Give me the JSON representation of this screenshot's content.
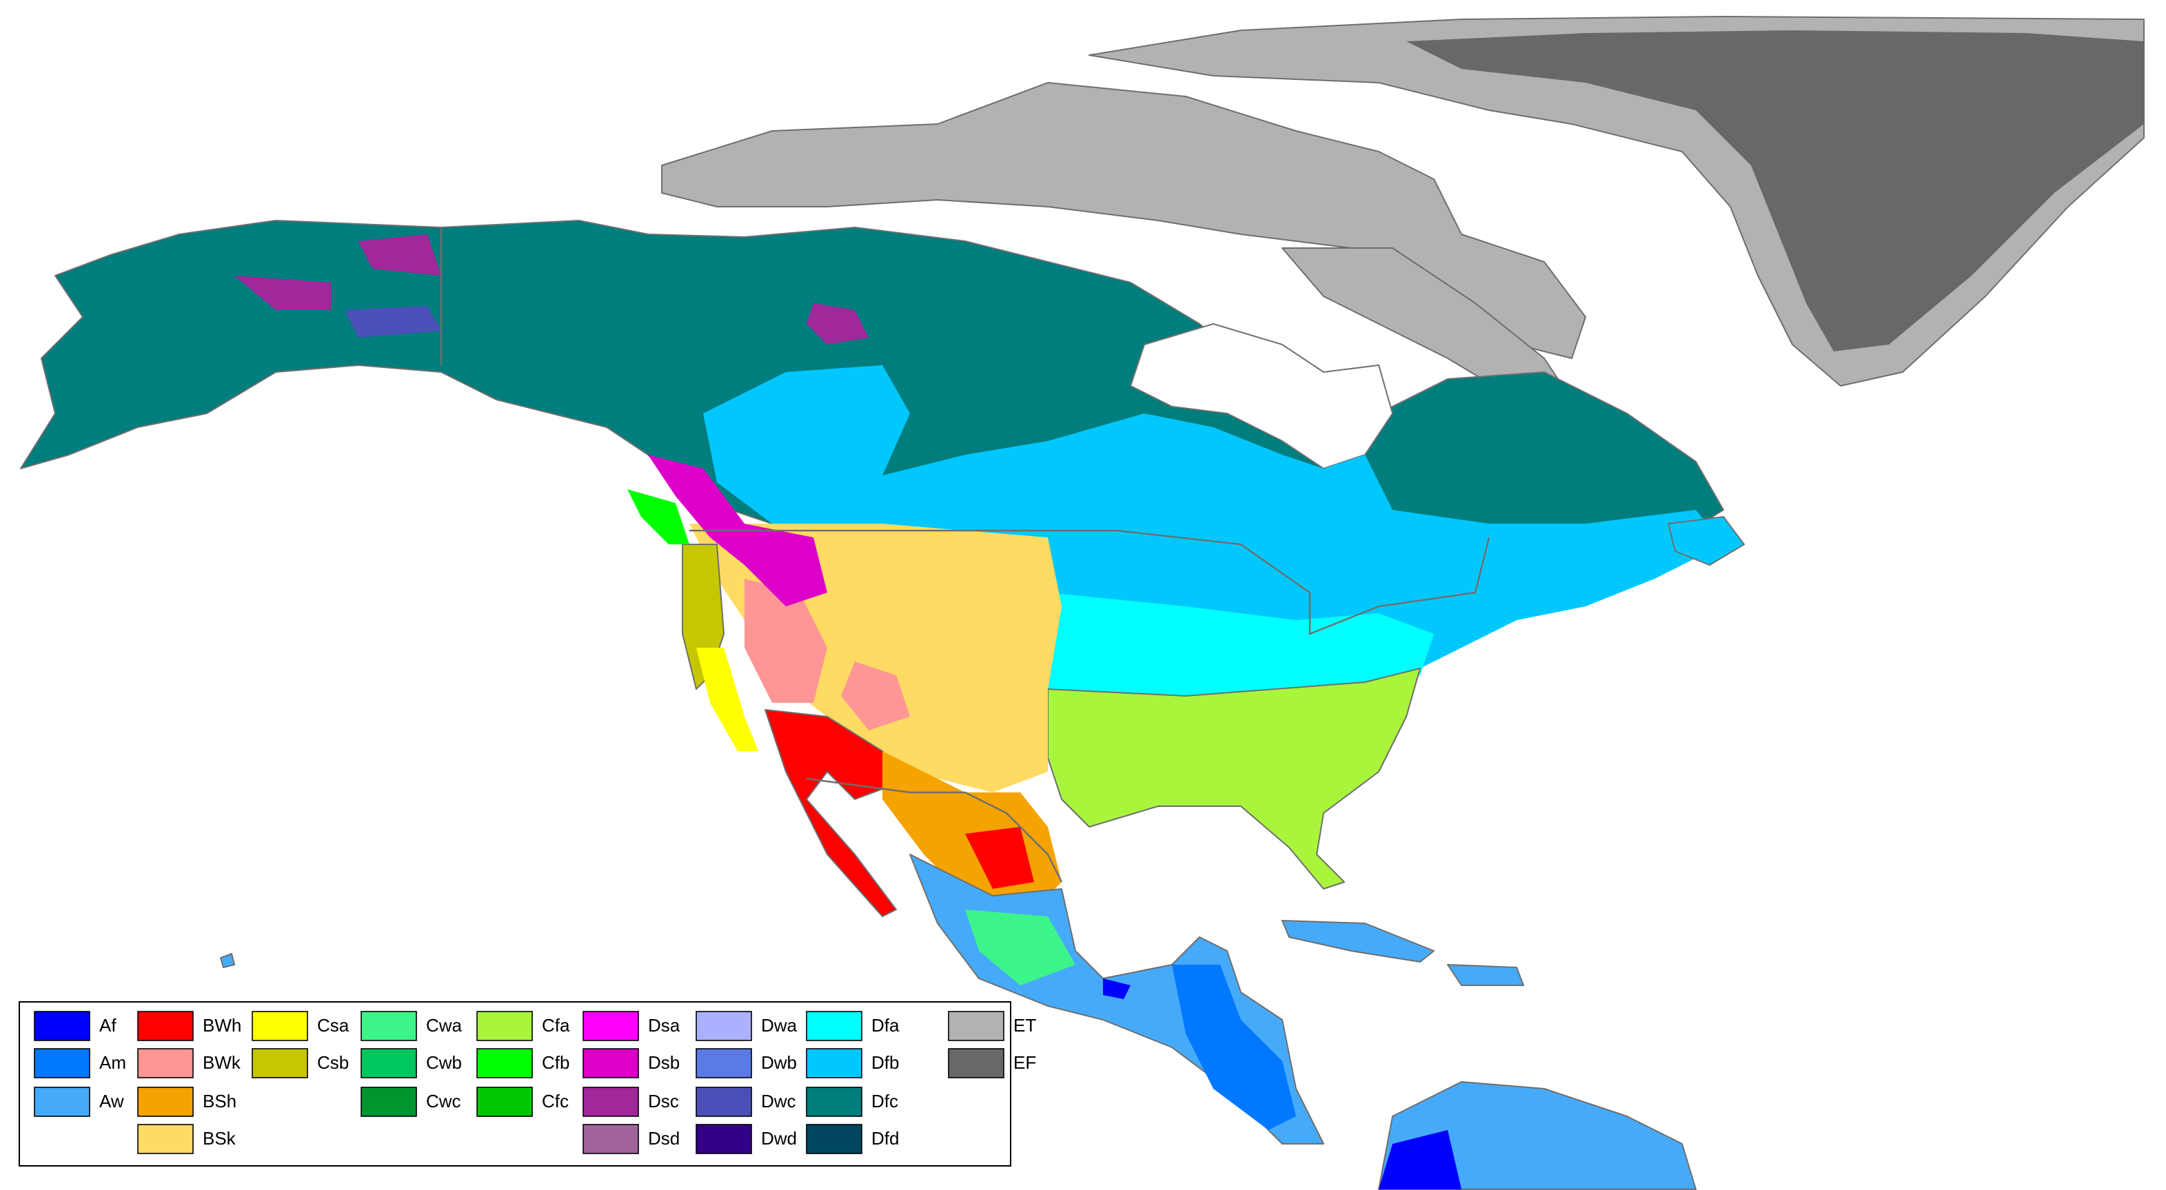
{
  "legend": {
    "columns": [
      [
        {
          "label": "Af",
          "color": "#0000fe"
        },
        {
          "label": "Am",
          "color": "#0078ff"
        },
        {
          "label": "Aw",
          "color": "#46aafa"
        }
      ],
      [
        {
          "label": "BWh",
          "color": "#fe0000"
        },
        {
          "label": "BWk",
          "color": "#fe9695"
        },
        {
          "label": "BSh",
          "color": "#f5a301"
        },
        {
          "label": "BSk",
          "color": "#ffdb63"
        }
      ],
      [
        {
          "label": "Csa",
          "color": "#ffff00"
        },
        {
          "label": "Csb",
          "color": "#c6c700"
        }
      ],
      [
        {
          "label": "Cwa",
          "color": "#3cf58a"
        },
        {
          "label": "Cwb",
          "color": "#00c85f"
        },
        {
          "label": "Cwc",
          "color": "#00962f"
        }
      ],
      [
        {
          "label": "Cfa",
          "color": "#a9f53c"
        },
        {
          "label": "Cfb",
          "color": "#00ff00"
        },
        {
          "label": "Cfc",
          "color": "#00c800"
        }
      ],
      [
        {
          "label": "Dsa",
          "color": "#ff00fe"
        },
        {
          "label": "Dsb",
          "color": "#dc00c8"
        },
        {
          "label": "Dsc",
          "color": "#a0289b"
        },
        {
          "label": "Dsd",
          "color": "#a0649b"
        }
      ],
      [
        {
          "label": "Dwa",
          "color": "#abb1ff"
        },
        {
          "label": "Dwb",
          "color": "#5a7ae6"
        },
        {
          "label": "Dwc",
          "color": "#4b50b9"
        },
        {
          "label": "Dwd",
          "color": "#320087"
        }
      ],
      [
        {
          "label": "Dfa",
          "color": "#00ffff"
        },
        {
          "label": "Dfb",
          "color": "#00c8ff"
        },
        {
          "label": "Dfc",
          "color": "#007d7d"
        },
        {
          "label": "Dfd",
          "color": "#00465f"
        }
      ],
      [
        {
          "label": "ET",
          "color": "#b2b2b2"
        },
        {
          "label": "EF",
          "color": "#686868"
        }
      ]
    ]
  }
}
